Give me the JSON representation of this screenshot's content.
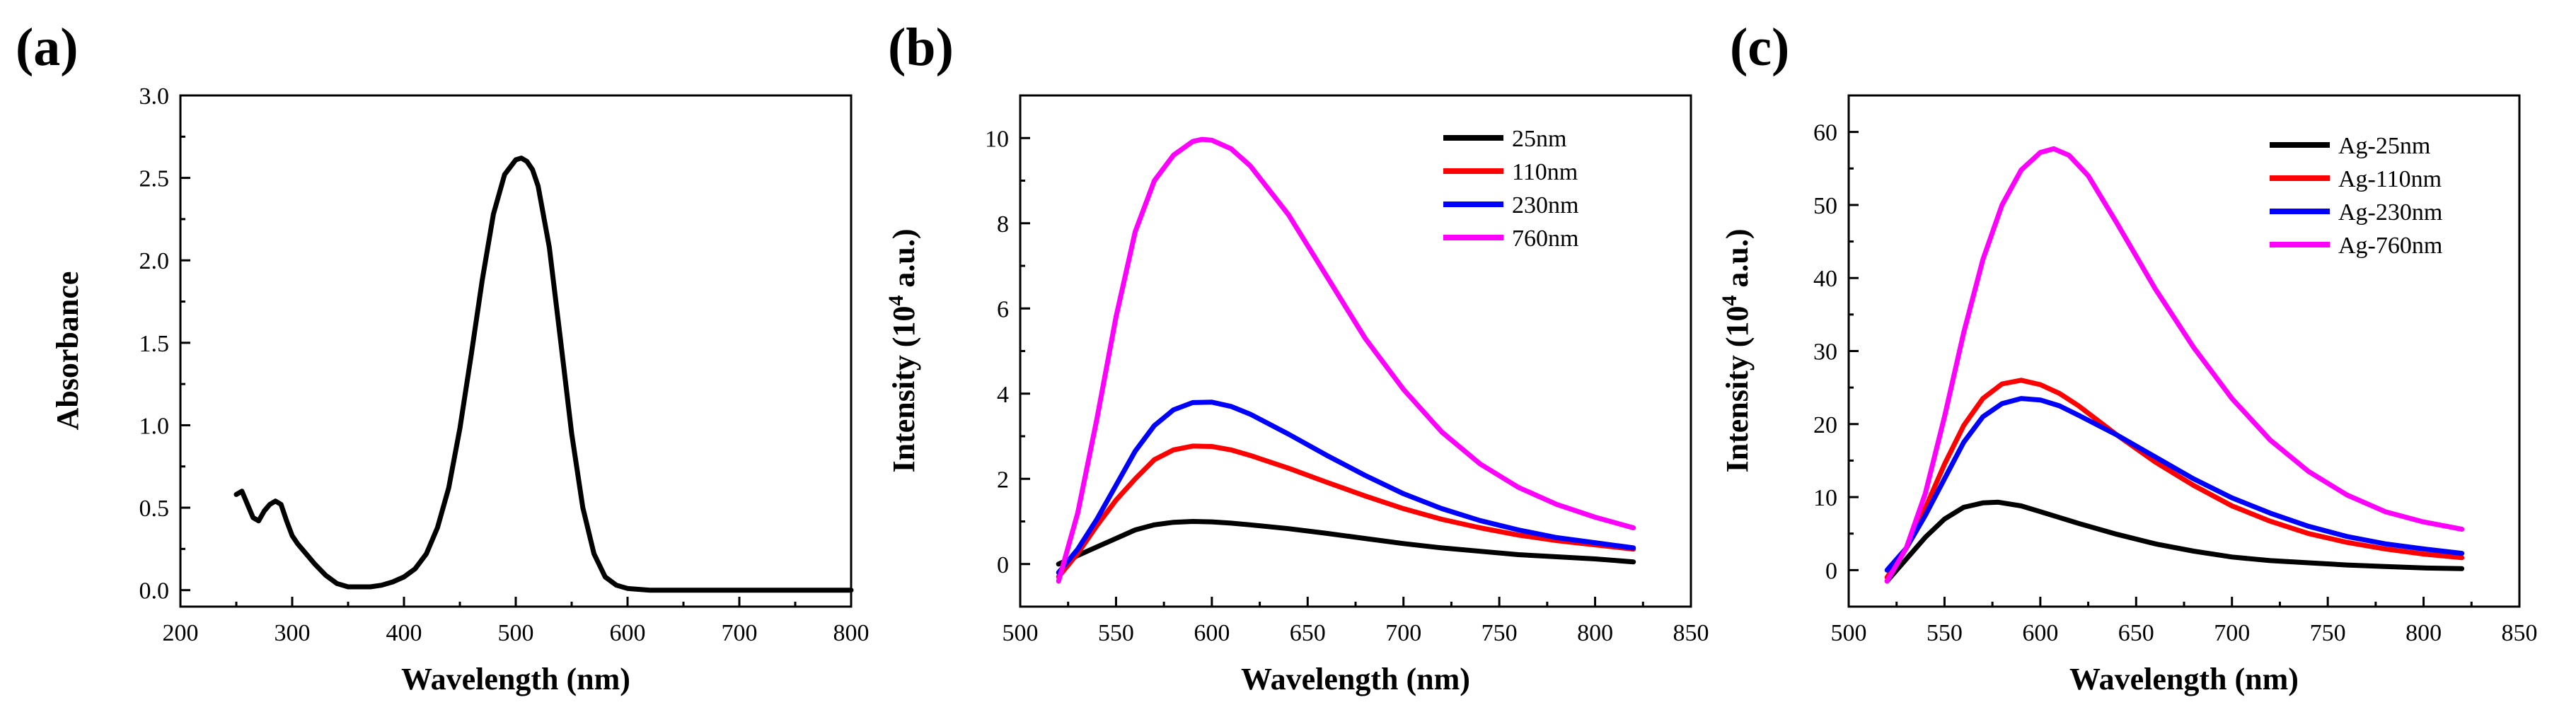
{
  "chart_data": [
    {
      "id": "a",
      "type": "line",
      "panel_label": "(a)",
      "xlabel": "Wavelength (nm)",
      "ylabel": "Absorbance",
      "xlim": [
        200,
        800
      ],
      "ylim": [
        -0.1,
        3.0
      ],
      "xticks": [
        200,
        300,
        400,
        500,
        600,
        700,
        800
      ],
      "yticks": [
        0.0,
        0.5,
        1.0,
        1.5,
        2.0,
        2.5,
        3.0
      ],
      "ytick_decimals": 1,
      "legend": false,
      "series": [
        {
          "name": "Absorbance",
          "color": "#000000",
          "x": [
            250,
            255,
            260,
            265,
            270,
            275,
            280,
            285,
            290,
            295,
            300,
            305,
            310,
            320,
            330,
            340,
            350,
            360,
            370,
            380,
            390,
            400,
            410,
            420,
            430,
            440,
            450,
            460,
            470,
            480,
            490,
            500,
            505,
            510,
            515,
            520,
            530,
            540,
            550,
            560,
            570,
            580,
            590,
            600,
            620,
            650,
            700,
            750,
            800
          ],
          "y": [
            0.58,
            0.6,
            0.52,
            0.44,
            0.42,
            0.48,
            0.52,
            0.54,
            0.52,
            0.42,
            0.33,
            0.28,
            0.24,
            0.16,
            0.09,
            0.04,
            0.02,
            0.02,
            0.02,
            0.03,
            0.05,
            0.08,
            0.13,
            0.22,
            0.38,
            0.62,
            0.98,
            1.42,
            1.88,
            2.28,
            2.52,
            2.61,
            2.62,
            2.6,
            2.55,
            2.45,
            2.08,
            1.52,
            0.95,
            0.5,
            0.22,
            0.08,
            0.03,
            0.01,
            0.0,
            0.0,
            0.0,
            0.0,
            0.0
          ]
        }
      ]
    },
    {
      "id": "b",
      "type": "line",
      "panel_label": "(b)",
      "xlabel": "Wavelength (nm)",
      "ylabel_base": "Intensity (10",
      "ylabel_sup": "4",
      "ylabel_tail": " a.u.)",
      "xlim": [
        500,
        850
      ],
      "ylim": [
        -1,
        11
      ],
      "xticks": [
        500,
        550,
        600,
        650,
        700,
        750,
        800,
        850
      ],
      "yticks": [
        0,
        2,
        4,
        6,
        8,
        10
      ],
      "ytick_decimals": 0,
      "legend": true,
      "series": [
        {
          "name": "25nm",
          "color": "#000000",
          "x": [
            520,
            530,
            540,
            550,
            560,
            570,
            580,
            590,
            600,
            610,
            620,
            640,
            660,
            680,
            700,
            720,
            740,
            760,
            780,
            800,
            820
          ],
          "y": [
            0.0,
            0.2,
            0.4,
            0.6,
            0.8,
            0.92,
            0.98,
            1.0,
            0.99,
            0.96,
            0.92,
            0.83,
            0.72,
            0.6,
            0.48,
            0.38,
            0.3,
            0.22,
            0.17,
            0.12,
            0.05
          ]
        },
        {
          "name": "110nm",
          "color": "#ff0000",
          "x": [
            520,
            530,
            540,
            550,
            560,
            570,
            580,
            590,
            600,
            610,
            620,
            640,
            660,
            680,
            700,
            720,
            740,
            760,
            780,
            800,
            820
          ],
          "y": [
            -0.3,
            0.25,
            0.9,
            1.5,
            2.0,
            2.45,
            2.68,
            2.77,
            2.76,
            2.68,
            2.55,
            2.25,
            1.92,
            1.6,
            1.3,
            1.05,
            0.85,
            0.68,
            0.55,
            0.45,
            0.35
          ]
        },
        {
          "name": "230nm",
          "color": "#0000ff",
          "x": [
            520,
            530,
            540,
            550,
            560,
            570,
            580,
            590,
            600,
            610,
            620,
            640,
            660,
            680,
            700,
            720,
            740,
            760,
            780,
            800,
            820
          ],
          "y": [
            -0.2,
            0.35,
            1.05,
            1.85,
            2.65,
            3.25,
            3.62,
            3.79,
            3.8,
            3.7,
            3.52,
            3.05,
            2.55,
            2.08,
            1.65,
            1.3,
            1.02,
            0.8,
            0.62,
            0.5,
            0.38
          ]
        },
        {
          "name": "760nm",
          "color": "#ff00ff",
          "x": [
            520,
            530,
            540,
            550,
            560,
            570,
            580,
            590,
            595,
            600,
            610,
            620,
            640,
            660,
            680,
            700,
            720,
            740,
            760,
            780,
            800,
            820
          ],
          "y": [
            -0.4,
            1.2,
            3.4,
            5.8,
            7.8,
            9.0,
            9.6,
            9.92,
            9.97,
            9.95,
            9.75,
            9.35,
            8.2,
            6.75,
            5.3,
            4.1,
            3.1,
            2.35,
            1.8,
            1.4,
            1.1,
            0.85
          ]
        }
      ]
    },
    {
      "id": "c",
      "type": "line",
      "panel_label": "(c)",
      "xlabel": "Wavelength (nm)",
      "ylabel_base": "Intensity (10",
      "ylabel_sup": "4",
      "ylabel_tail": " a.u.)",
      "xlim": [
        500,
        850
      ],
      "ylim": [
        -5,
        65
      ],
      "xticks": [
        500,
        550,
        600,
        650,
        700,
        750,
        800,
        850
      ],
      "yticks": [
        0,
        10,
        20,
        30,
        40,
        50,
        60
      ],
      "ytick_decimals": 0,
      "legend": true,
      "series": [
        {
          "name": "Ag-25nm",
          "color": "#000000",
          "x": [
            520,
            530,
            540,
            550,
            560,
            570,
            578,
            590,
            600,
            620,
            640,
            660,
            680,
            700,
            720,
            740,
            760,
            780,
            800,
            820
          ],
          "y": [
            -1.5,
            1.5,
            4.5,
            7.0,
            8.6,
            9.2,
            9.3,
            8.8,
            8.0,
            6.4,
            4.9,
            3.6,
            2.6,
            1.8,
            1.3,
            1.0,
            0.7,
            0.5,
            0.3,
            0.2
          ]
        },
        {
          "name": "Ag-110nm",
          "color": "#ff0000",
          "x": [
            520,
            530,
            540,
            550,
            560,
            570,
            580,
            590,
            600,
            610,
            620,
            640,
            660,
            680,
            700,
            720,
            740,
            760,
            780,
            800,
            820
          ],
          "y": [
            -1.0,
            3.0,
            8.5,
            14.5,
            19.8,
            23.5,
            25.5,
            26.0,
            25.4,
            24.2,
            22.5,
            18.5,
            14.8,
            11.6,
            8.8,
            6.7,
            5.0,
            3.8,
            2.9,
            2.2,
            1.7
          ]
        },
        {
          "name": "Ag-230nm",
          "color": "#0000ff",
          "x": [
            520,
            530,
            540,
            550,
            560,
            570,
            580,
            590,
            600,
            610,
            620,
            640,
            660,
            680,
            700,
            720,
            740,
            760,
            780,
            800,
            820
          ],
          "y": [
            0.0,
            3.0,
            7.5,
            12.5,
            17.5,
            21.0,
            22.8,
            23.5,
            23.3,
            22.5,
            21.2,
            18.5,
            15.5,
            12.5,
            9.9,
            7.8,
            6.0,
            4.6,
            3.6,
            2.9,
            2.3
          ]
        },
        {
          "name": "Ag-760nm",
          "color": "#ff00ff",
          "x": [
            520,
            530,
            540,
            550,
            560,
            570,
            580,
            590,
            600,
            607,
            615,
            625,
            640,
            660,
            680,
            700,
            720,
            740,
            760,
            780,
            800,
            820
          ],
          "y": [
            -1.5,
            3.0,
            10.5,
            21.0,
            32.5,
            42.5,
            50.0,
            54.8,
            57.2,
            57.7,
            56.8,
            54.0,
            47.5,
            38.5,
            30.5,
            23.5,
            17.8,
            13.5,
            10.3,
            8.0,
            6.6,
            5.6
          ]
        }
      ]
    }
  ]
}
